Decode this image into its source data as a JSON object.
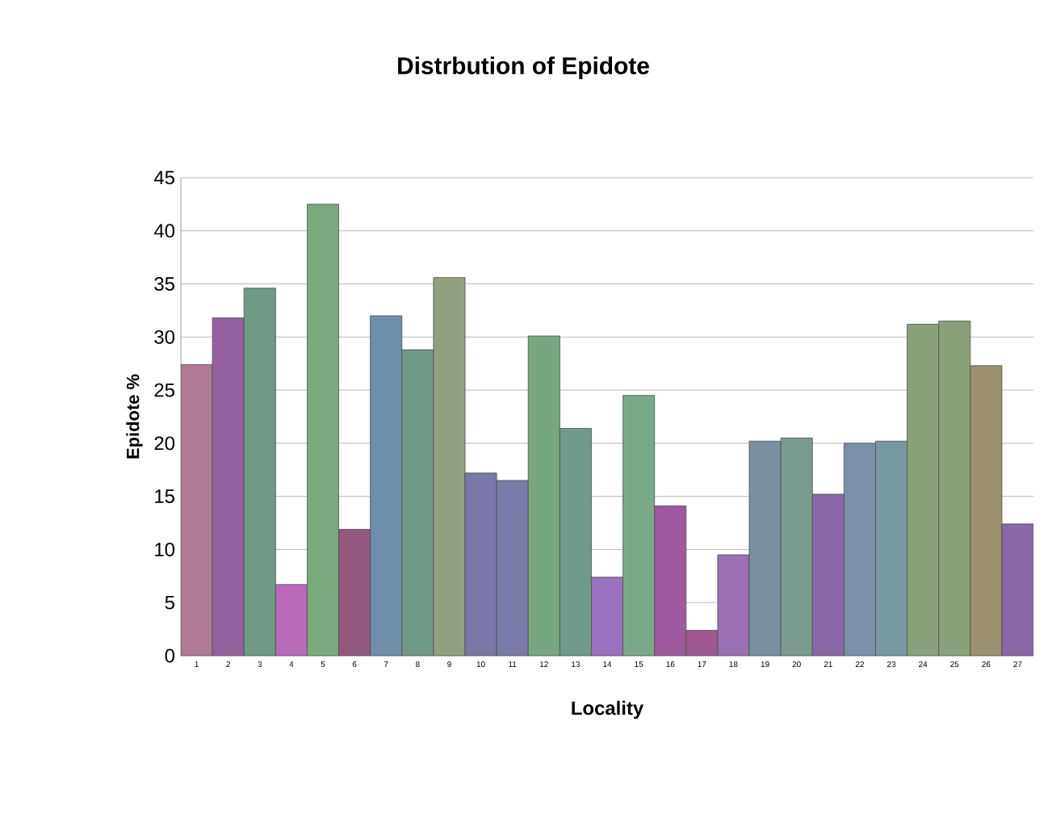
{
  "chart_data": {
    "type": "bar",
    "title": "Distrbution of Epidote",
    "xlabel": "Locality",
    "ylabel": "Epidote %",
    "categories": [
      "1",
      "2",
      "3",
      "4",
      "5",
      "6",
      "7",
      "8",
      "9",
      "10",
      "11",
      "12",
      "13",
      "14",
      "15",
      "16",
      "17",
      "18",
      "19",
      "20",
      "21",
      "22",
      "23",
      "24",
      "25",
      "26",
      "27"
    ],
    "values": [
      27.4,
      31.8,
      34.6,
      6.7,
      42.5,
      11.9,
      32.0,
      28.8,
      35.6,
      17.2,
      16.5,
      30.1,
      21.4,
      7.4,
      24.5,
      14.1,
      2.4,
      9.5,
      20.2,
      20.5,
      15.2,
      20.0,
      20.2,
      31.2,
      31.5,
      27.3,
      12.4
    ],
    "colors": [
      "#b07a94",
      "#94609e",
      "#6f9a86",
      "#b86ab8",
      "#7aaa7e",
      "#94587e",
      "#6e8eaa",
      "#6e9a88",
      "#92a080",
      "#7a78a8",
      "#7a7aaa",
      "#76a87e",
      "#6e9a8a",
      "#9a70c0",
      "#78aa8a",
      "#a058a0",
      "#a05890",
      "#9a70b4",
      "#7890a0",
      "#7a9a90",
      "#8a68a8",
      "#7890a8",
      "#7898a0",
      "#8aa07a",
      "#8aa07a",
      "#9a9070",
      "#8a68a8"
    ],
    "ylim": [
      0,
      45
    ],
    "yticks": [
      0,
      5,
      10,
      15,
      20,
      25,
      30,
      35,
      40,
      45
    ],
    "grid": "y"
  }
}
